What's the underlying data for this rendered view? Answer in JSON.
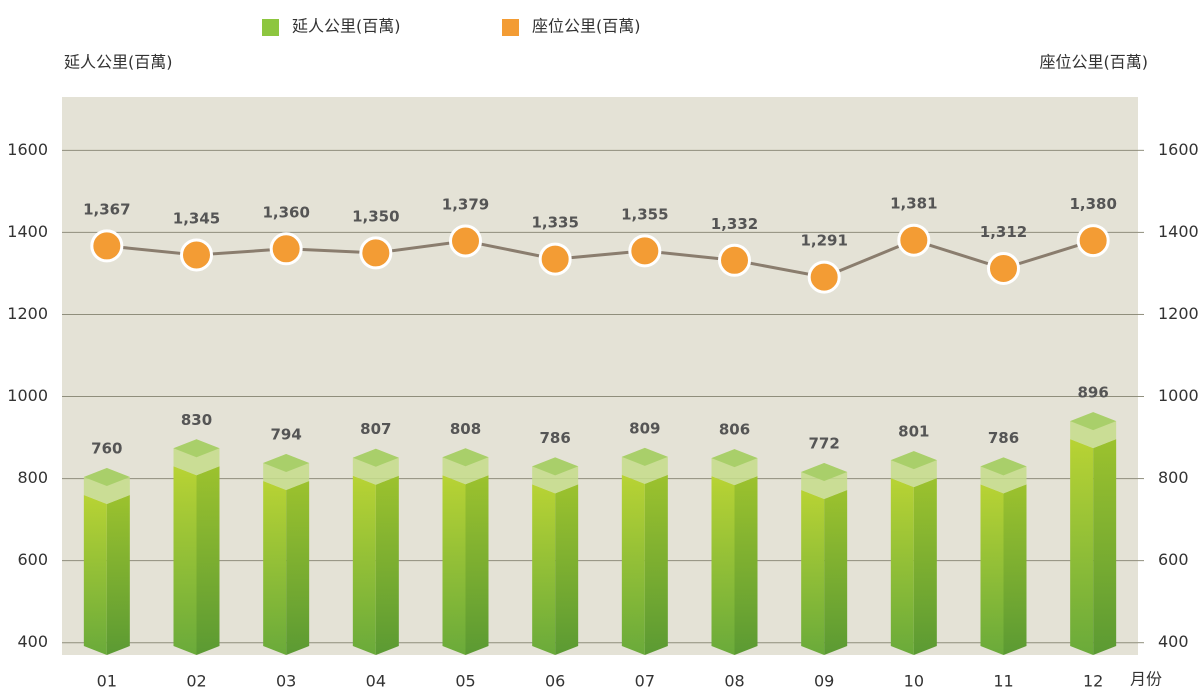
{
  "chart_data": {
    "type": "combo",
    "categories": [
      "01",
      "02",
      "03",
      "04",
      "05",
      "06",
      "07",
      "08",
      "09",
      "10",
      "11",
      "12"
    ],
    "x_label": "月份",
    "y_label": "延人公里(百萬)",
    "y2_label": "座位公里(百萬)",
    "series": [
      {
        "name": "延人公里(百萬)",
        "type": "bar",
        "color": "#8dc63f",
        "values": [
          760,
          830,
          794,
          807,
          808,
          786,
          809,
          806,
          772,
          801,
          786,
          896
        ]
      },
      {
        "name": "座位公里(百萬)",
        "type": "line",
        "axis": "y2",
        "color": "#f39c34",
        "line_color": "#8a7d6e",
        "values": [
          1367,
          1345,
          1360,
          1350,
          1379,
          1335,
          1355,
          1332,
          1291,
          1381,
          1312,
          1380
        ],
        "value_labels": [
          "1,367",
          "1,345",
          "1,360",
          "1,350",
          "1,379",
          "1,335",
          "1,355",
          "1,332",
          "1,291",
          "1,381",
          "1,312",
          "1,380"
        ]
      }
    ],
    "ylim": [
      370,
      1730
    ],
    "yticks": [
      400,
      600,
      800,
      1000,
      1200,
      1400,
      1600
    ],
    "y2lim": [
      370,
      1730
    ],
    "y2ticks": [
      400,
      600,
      800,
      1000,
      1200,
      1400,
      1600
    ],
    "grid": true,
    "legend": "top"
  }
}
